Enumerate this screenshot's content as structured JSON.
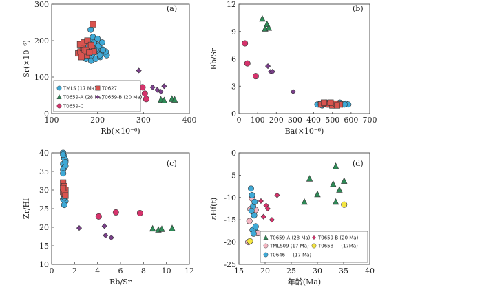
{
  "chart_data": [
    {
      "panel": "(a)",
      "type": "scatter",
      "xlabel": "Rb(×10⁻⁶)",
      "ylabel": "Sr(×10⁻⁶)",
      "xlim": [
        100,
        400
      ],
      "ylim": [
        0,
        300
      ],
      "xticks": [
        "100",
        "200",
        "300",
        "400"
      ],
      "yticks": [
        "0",
        "100",
        "200",
        "300"
      ],
      "legend_position": "bottom-left",
      "series": [
        {
          "name": "TMLS (17 Ma)",
          "marker": "circle",
          "color": "#3fa9d6",
          "x": [
            175,
            180,
            185,
            190,
            195,
            200,
            205,
            210,
            215,
            220,
            178,
            188,
            198,
            208,
            218,
            182,
            192,
            202,
            212,
            186,
            196,
            206,
            190,
            200,
            210,
            172,
            185,
            195,
            205
          ],
          "y": [
            150,
            160,
            155,
            165,
            170,
            175,
            168,
            172,
            165,
            160,
            180,
            185,
            190,
            178,
            170,
            200,
            195,
            185,
            175,
            145,
            150,
            155,
            210,
            205,
            195,
            170,
            230,
            175,
            160
          ]
        },
        {
          "name": "T0627",
          "marker": "square",
          "color": "#d9534f",
          "x": [
            158,
            163,
            168,
            172,
            176,
            180,
            184,
            188,
            162,
            170,
            178,
            186,
            192,
            190,
            165,
            175,
            182
          ],
          "y": [
            165,
            170,
            180,
            175,
            160,
            170,
            185,
            178,
            190,
            195,
            200,
            188,
            170,
            245,
            155,
            172,
            168
          ]
        },
        {
          "name": "T0659-A (28 Ma)",
          "marker": "triangle",
          "color": "#2e8b57",
          "x": [
            338,
            345,
            362,
            368
          ],
          "y": [
            38,
            36,
            40,
            38
          ]
        },
        {
          "name": "T0659-B (20 Ma)",
          "marker": "diamond",
          "color": "#7b3f8c",
          "x": [
            290,
            320,
            330,
            338,
            345
          ],
          "y": [
            118,
            72,
            65,
            60,
            75
          ]
        },
        {
          "name": "T0659-C",
          "marker": "circle",
          "color": "#d6336c",
          "x": [
            298,
            303,
            306
          ],
          "y": [
            72,
            55,
            40
          ]
        }
      ]
    },
    {
      "panel": "(b)",
      "type": "scatter",
      "xlabel": "Ba(×10⁻⁶)",
      "ylabel": "Rb/Sr",
      "xlim": [
        0,
        700
      ],
      "ylim": [
        0,
        12
      ],
      "xticks": [
        "0",
        "100",
        "200",
        "300",
        "400",
        "500",
        "600",
        "700"
      ],
      "yticks": [
        "0",
        "3",
        "6",
        "9",
        "12"
      ],
      "series": [
        {
          "name": "TMLS (17 Ma)",
          "marker": "circle",
          "color": "#3fa9d6",
          "x": [
            420,
            435,
            450,
            465,
            480,
            495,
            510,
            525,
            540,
            555,
            570,
            585,
            445,
            475,
            505,
            535,
            565
          ],
          "y": [
            1.0,
            1.1,
            1.0,
            1.2,
            1.1,
            1.0,
            1.1,
            1.0,
            1.2,
            1.0,
            1.1,
            1.0,
            0.9,
            1.0,
            0.9,
            1.1,
            1.0
          ]
        },
        {
          "name": "T0627",
          "marker": "square",
          "color": "#d9534f",
          "x": [
            440,
            460,
            480,
            500,
            520,
            540,
            455,
            490,
            525
          ],
          "y": [
            1.0,
            1.1,
            1.0,
            0.9,
            1.1,
            1.0,
            1.2,
            1.2,
            0.9
          ]
        },
        {
          "name": "T0659-A (28 Ma)",
          "marker": "triangle",
          "color": "#2e8b57",
          "x": [
            125,
            140,
            150,
            160
          ],
          "y": [
            10.4,
            9.3,
            9.8,
            9.4
          ]
        },
        {
          "name": "T0659-B (20 Ma)",
          "marker": "diamond",
          "color": "#7b3f8c",
          "x": [
            155,
            170,
            180,
            290
          ],
          "y": [
            5.2,
            4.6,
            4.6,
            2.4
          ]
        },
        {
          "name": "T0659-C",
          "marker": "circle",
          "color": "#d6336c",
          "x": [
            32,
            45,
            90
          ],
          "y": [
            7.7,
            5.5,
            4.1
          ]
        }
      ]
    },
    {
      "panel": "(c)",
      "type": "scatter",
      "xlabel": "Rb/Sr",
      "ylabel": "Zr/Hf",
      "xlim": [
        0,
        12
      ],
      "ylim": [
        10,
        40
      ],
      "xticks": [
        "0",
        "2",
        "4",
        "6",
        "8",
        "10",
        "12"
      ],
      "yticks": [
        "10",
        "15",
        "20",
        "25",
        "30",
        "35",
        "40"
      ],
      "series": [
        {
          "name": "TMLS (17 Ma)",
          "marker": "circle",
          "color": "#3fa9d6",
          "x": [
            1.0,
            1.1,
            1.2,
            1.0,
            1.1,
            1.2,
            1.0,
            1.1,
            1.0,
            1.2,
            1.1,
            1.0,
            1.1,
            1.0,
            1.2
          ],
          "y": [
            40,
            39,
            38,
            37,
            36,
            36.5,
            35.5,
            38.5,
            39.5,
            27,
            26,
            27.5,
            28,
            34.5,
            37.5
          ]
        },
        {
          "name": "T0627",
          "marker": "square",
          "color": "#d9534f",
          "x": [
            1.0,
            1.1,
            1.2,
            1.0,
            1.1,
            1.2,
            1.0
          ],
          "y": [
            32,
            31,
            30,
            29.5,
            29,
            28.5,
            30.5
          ]
        },
        {
          "name": "T0659-A (28 Ma)",
          "marker": "triangle",
          "color": "#2e8b57",
          "x": [
            8.8,
            9.3,
            9.6,
            10.5
          ],
          "y": [
            19.6,
            19.3,
            19.5,
            19.7
          ]
        },
        {
          "name": "T0659-B (20 Ma)",
          "marker": "diamond",
          "color": "#7b3f8c",
          "x": [
            2.4,
            4.6,
            4.7,
            5.2
          ],
          "y": [
            19.8,
            20.3,
            17.8,
            17.2
          ]
        },
        {
          "name": "T0659-C",
          "marker": "circle",
          "color": "#d6336c",
          "x": [
            4.1,
            5.6,
            7.7
          ],
          "y": [
            22.9,
            24.0,
            23.8
          ]
        }
      ]
    },
    {
      "panel": "(d)",
      "type": "scatter",
      "xlabel": "年龄(Ma)",
      "ylabel": "εHf(t)",
      "xlim": [
        15,
        40
      ],
      "ylim": [
        -25,
        0
      ],
      "xticks": [
        "15",
        "20",
        "25",
        "30",
        "35",
        "40"
      ],
      "yticks": [
        "-25",
        "-20",
        "-15",
        "-10",
        "-5",
        "0"
      ],
      "legend_position": "bottom-right",
      "series": [
        {
          "name": "T0659-A (28 Ma)",
          "marker": "triangle",
          "color": "#2e8b57",
          "x": [
            27.5,
            28.5,
            30,
            33,
            33.5,
            33.5,
            34.2,
            35.1
          ],
          "y": [
            -11,
            -5.8,
            -9.3,
            -7,
            -3,
            -11,
            -8.3,
            -6.3
          ]
        },
        {
          "name": "T0659-B (20 Ma)",
          "marker": "diamond",
          "color": "#d6336c",
          "x": [
            19.2,
            19.7,
            20.2,
            20.5,
            21.3,
            22.3
          ],
          "y": [
            -10.8,
            -14.3,
            -11.8,
            -12.5,
            -15,
            -9.5
          ]
        },
        {
          "name": "TMLS09 (17 Ma)",
          "marker": "circle",
          "color": "#f4b6c2",
          "x": [
            16.8,
            17.0,
            17.2,
            17.5,
            18.2,
            18.6
          ],
          "y": [
            -20,
            -15.3,
            -12.6,
            -10.2,
            -12.8,
            -18
          ]
        },
        {
          "name": "T0658     (17Ma)",
          "marker": "circle",
          "color": "#f5e642",
          "x": [
            17.1,
            35.1
          ],
          "y": [
            -19.8,
            -11.6
          ]
        },
        {
          "name": "T0646     (17 Ma)",
          "marker": "circle",
          "color": "#3fa9d6",
          "x": [
            17.3,
            17.5,
            17.7,
            17.9,
            18.1,
            17.6,
            17.8,
            18.0,
            17.4,
            18.2
          ],
          "y": [
            -8,
            -9.5,
            -12,
            -14,
            -16.8,
            -17.3,
            -18.1,
            -11,
            -13,
            -16.5
          ]
        }
      ]
    }
  ],
  "legends": {
    "a": {
      "items": [
        "TMLS (17 Ma)",
        "T0627",
        "T0659-A (28 Ma)",
        "T0659-B (20 Ma)",
        "T0659-C"
      ]
    },
    "d": {
      "items": [
        "T0659-A (28 Ma)",
        "T0659-B (20 Ma)",
        "TMLS09 (17 Ma)",
        "T0658     (17Ma)",
        "T0646     (17 Ma)"
      ]
    }
  }
}
